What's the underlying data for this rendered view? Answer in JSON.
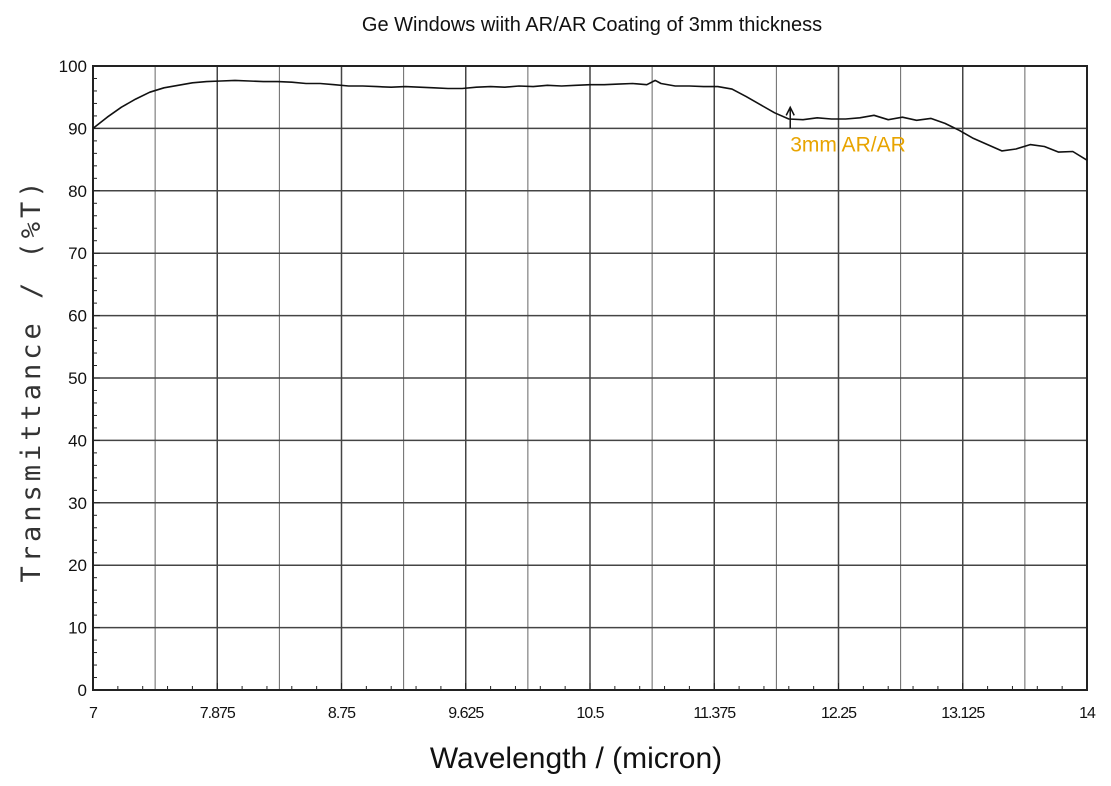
{
  "chart_data": {
    "type": "line",
    "title": "Ge Windows wiith AR/AR Coating of 3mm thickness",
    "xlabel": "Wavelength / (micron)",
    "ylabel": "Transmittance / (%T)",
    "xlim": [
      7,
      14
    ],
    "ylim": [
      0,
      100
    ],
    "x_ticks": [
      "7",
      "7.875",
      "8.75",
      "9.625",
      "10.5",
      "11.375",
      "12.25",
      "13.125",
      "14"
    ],
    "x_tick_values": [
      7,
      7.875,
      8.75,
      9.625,
      10.5,
      11.375,
      12.25,
      13.125,
      14
    ],
    "y_ticks": [
      "0",
      "10",
      "20",
      "30",
      "40",
      "50",
      "60",
      "70",
      "80",
      "90",
      "100"
    ],
    "y_tick_values": [
      0,
      10,
      20,
      30,
      40,
      50,
      60,
      70,
      80,
      90,
      100
    ],
    "grid": true,
    "minor_x_gridlines": [
      7.4375,
      8.3125,
      9.1875,
      10.0625,
      10.9375,
      11.8125,
      12.6875,
      13.5625
    ],
    "annotations": [
      {
        "text": "3mm AR/AR",
        "color": "#e8a400",
        "x": 11.91,
        "y": 86
      }
    ],
    "series": [
      {
        "color": "#111111",
        "x": [
          7.0,
          7.1,
          7.2,
          7.3,
          7.4,
          7.5,
          7.6,
          7.7,
          7.8,
          7.9,
          8.0,
          8.1,
          8.2,
          8.3,
          8.4,
          8.5,
          8.6,
          8.7,
          8.8,
          8.9,
          9.0,
          9.1,
          9.2,
          9.3,
          9.4,
          9.5,
          9.6,
          9.7,
          9.8,
          9.9,
          10.0,
          10.1,
          10.2,
          10.3,
          10.4,
          10.5,
          10.6,
          10.7,
          10.8,
          10.9,
          10.96,
          11.0,
          11.1,
          11.2,
          11.3,
          11.4,
          11.5,
          11.6,
          11.7,
          11.8,
          11.9,
          12.0,
          12.1,
          12.2,
          12.3,
          12.4,
          12.5,
          12.6,
          12.7,
          12.8,
          12.9,
          13.0,
          13.1,
          13.2,
          13.3,
          13.4,
          13.5,
          13.6,
          13.7,
          13.8,
          13.9,
          14.0
        ],
        "values": [
          90.0,
          91.8,
          93.4,
          94.7,
          95.8,
          96.5,
          96.9,
          97.3,
          97.5,
          97.6,
          97.7,
          97.6,
          97.5,
          97.5,
          97.4,
          97.2,
          97.2,
          97.0,
          96.8,
          96.8,
          96.7,
          96.6,
          96.7,
          96.6,
          96.5,
          96.4,
          96.4,
          96.6,
          96.7,
          96.6,
          96.8,
          96.7,
          96.9,
          96.8,
          96.9,
          97.0,
          97.0,
          97.1,
          97.2,
          97.0,
          97.7,
          97.2,
          96.8,
          96.8,
          96.7,
          96.7,
          96.3,
          95.1,
          93.8,
          92.5,
          91.5,
          91.4,
          91.7,
          91.5,
          91.5,
          91.7,
          92.1,
          91.4,
          91.8,
          91.3,
          91.6,
          90.8,
          89.7,
          88.4,
          87.4,
          86.4,
          86.7,
          87.4,
          87.1,
          86.2,
          86.3,
          84.9
        ]
      }
    ]
  }
}
